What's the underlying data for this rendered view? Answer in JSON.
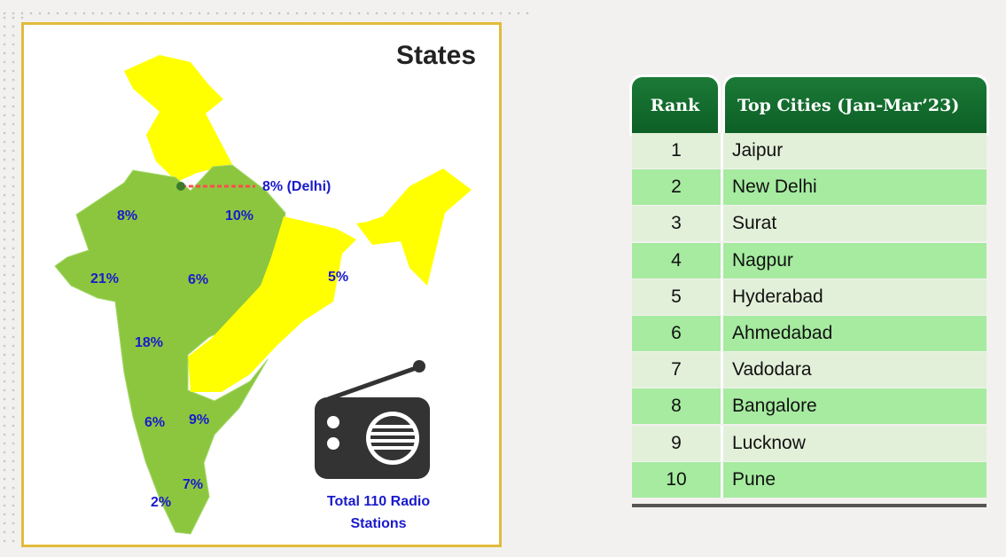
{
  "map_panel": {
    "title": "States",
    "labels": {
      "delhi": "8% (Delhi)",
      "punjab_rajasthan": "8%",
      "up": "10%",
      "gujarat": "21%",
      "mp": "6%",
      "wb": "5%",
      "maharashtra": "18%",
      "karnataka": "6%",
      "ap": "9%",
      "tn": "7%",
      "kerala": "2%"
    },
    "total_line1": "Total 110 Radio",
    "total_line2": "Stations",
    "icon": "radio-icon",
    "colors": {
      "with_stations": "#8cc63f",
      "without_stations": "#ffff00",
      "border": "#e2bb3a",
      "label": "#1a1acc",
      "delhi_marker": "#ff4d4d"
    }
  },
  "table": {
    "headers": {
      "rank": "Rank",
      "cities": "Top Cities (Jan-Mar’23)"
    },
    "rows": [
      {
        "rank": "1",
        "city": "Jaipur"
      },
      {
        "rank": "2",
        "city": "New Delhi"
      },
      {
        "rank": "3",
        "city": "Surat"
      },
      {
        "rank": "4",
        "city": "Nagpur"
      },
      {
        "rank": "5",
        "city": "Hyderabad"
      },
      {
        "rank": "6",
        "city": "Ahmedabad"
      },
      {
        "rank": "7",
        "city": "Vadodara"
      },
      {
        "rank": "8",
        "city": "Bangalore"
      },
      {
        "rank": "9",
        "city": "Lucknow"
      },
      {
        "rank": "10",
        "city": "Pune"
      }
    ],
    "colors": {
      "header": "#0f6a2b",
      "row_light": "#e2f0d9",
      "row_dark": "#a6eba0"
    }
  }
}
